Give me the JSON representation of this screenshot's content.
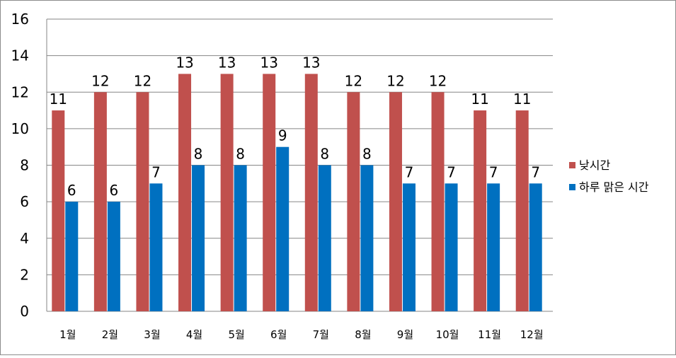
{
  "chart_data": {
    "type": "bar",
    "title": "",
    "xlabel": "",
    "ylabel": "",
    "ylim": [
      0,
      16
    ],
    "yticks": [
      0,
      2,
      4,
      6,
      8,
      10,
      12,
      14,
      16
    ],
    "grid": true,
    "legend_position": "right",
    "categories": [
      "1월",
      "2월",
      "3월",
      "4월",
      "5월",
      "6월",
      "7월",
      "8월",
      "9월",
      "10월",
      "11월",
      "12월"
    ],
    "series": [
      {
        "name": "낮시간",
        "color": "#C0504D",
        "values": [
          11,
          12,
          12,
          13,
          13,
          13,
          13,
          12,
          12,
          12,
          11,
          11
        ]
      },
      {
        "name": "하루 맑은 시간",
        "color": "#0070C0",
        "values": [
          6,
          6,
          7,
          8,
          8,
          9,
          8,
          8,
          7,
          7,
          7,
          7
        ]
      }
    ]
  }
}
